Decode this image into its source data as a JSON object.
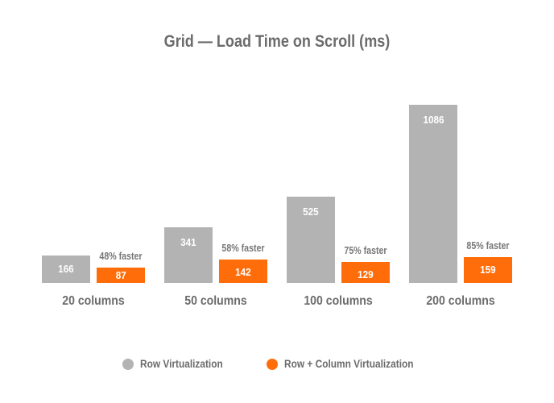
{
  "chart_data": {
    "type": "bar",
    "title": "Grid — Load Time on Scroll (ms)",
    "xlabel": "",
    "ylabel": "",
    "categories": [
      "20 columns",
      "50 columns",
      "100 columns",
      "200 columns"
    ],
    "series": [
      {
        "name": "Row Virtualization",
        "color": "#b3b3b3",
        "values": [
          166,
          341,
          525,
          1086
        ]
      },
      {
        "name": "Row + Column Virtualization",
        "color": "#ff6d0a",
        "values": [
          87,
          142,
          129,
          159
        ]
      }
    ],
    "annotations": [
      "48% faster",
      "58% faster",
      "75% faster",
      "85% faster"
    ],
    "grid": false,
    "legend_position": "bottom",
    "ylim": [
      0,
      1086
    ]
  },
  "title": "Grid — Load Time on Scroll (ms)",
  "legend": {
    "items": [
      {
        "label": "Row Virtualization",
        "color": "#b3b3b3"
      },
      {
        "label": "Row + Column Virtualization",
        "color": "#ff6d0a"
      }
    ]
  },
  "groups": [
    {
      "category": "20 columns",
      "gray": "166",
      "orange": "87",
      "pct": "48% faster"
    },
    {
      "category": "50 columns",
      "gray": "341",
      "orange": "142",
      "pct": "58% faster"
    },
    {
      "category": "100 columns",
      "gray": "525",
      "orange": "129",
      "pct": "75% faster"
    },
    {
      "category": "200 columns",
      "gray": "1086",
      "orange": "159",
      "pct": "85% faster"
    }
  ]
}
